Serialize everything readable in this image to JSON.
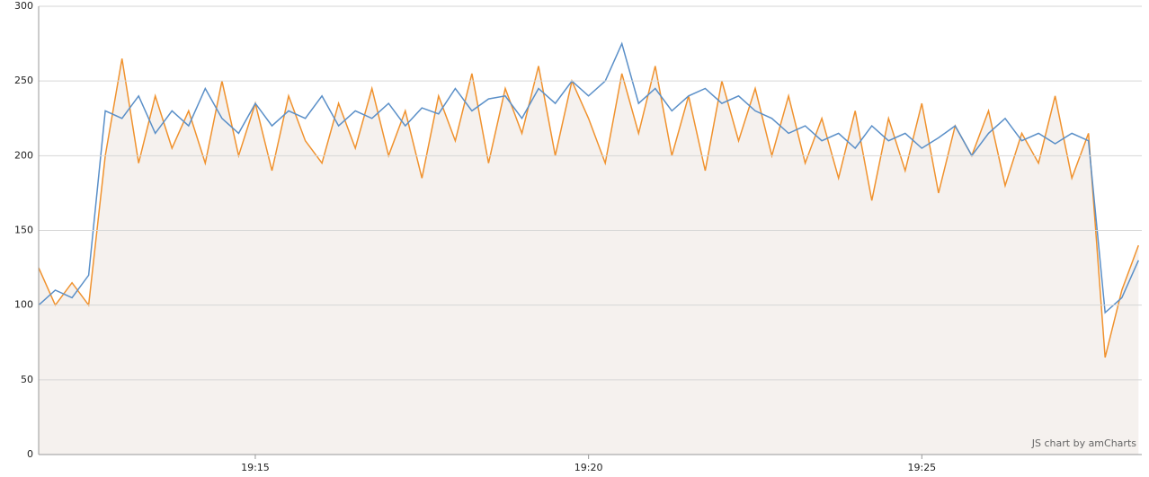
{
  "chart_data": {
    "type": "line",
    "credit": "JS chart by amCharts",
    "x": [
      1151.75,
      1152,
      1152.25,
      1152.5,
      1152.75,
      1153,
      1153.25,
      1153.5,
      1153.75,
      1154,
      1154.25,
      1154.5,
      1154.75,
      1155,
      1155.25,
      1155.5,
      1155.75,
      1156,
      1156.25,
      1156.5,
      1156.75,
      1157,
      1157.25,
      1157.5,
      1157.75,
      1158,
      1158.25,
      1158.5,
      1158.75,
      1159,
      1159.25,
      1159.5,
      1159.75,
      1160,
      1160.25,
      1160.5,
      1160.75,
      1161,
      1161.25,
      1161.5,
      1161.75,
      1162,
      1162.25,
      1162.5,
      1162.75,
      1163,
      1163.25,
      1163.5,
      1163.75,
      1164,
      1164.25,
      1164.5,
      1164.75,
      1165,
      1165.25,
      1165.5,
      1165.75,
      1166,
      1166.25,
      1166.5,
      1166.75,
      1167,
      1167.25,
      1167.5,
      1167.75,
      1168,
      1168.25
    ],
    "series": [
      {
        "color": "#f0922e",
        "fill": "#f5f1ee",
        "values": [
          125,
          100,
          115,
          100,
          200,
          265,
          195,
          240,
          205,
          230,
          195,
          250,
          200,
          235,
          190,
          240,
          210,
          195,
          235,
          205,
          245,
          200,
          230,
          185,
          240,
          210,
          255,
          195,
          245,
          215,
          260,
          200,
          250,
          225,
          195,
          255,
          215,
          260,
          200,
          240,
          190,
          250,
          210,
          245,
          200,
          240,
          195,
          225,
          185,
          230,
          170,
          225,
          190,
          235,
          175,
          220,
          200,
          230,
          180,
          215,
          195,
          240,
          185,
          215,
          65,
          110,
          140
        ]
      },
      {
        "color": "#5a8fc8",
        "values": [
          100,
          110,
          105,
          120,
          230,
          225,
          240,
          215,
          230,
          220,
          245,
          225,
          215,
          235,
          220,
          230,
          225,
          240,
          220,
          230,
          225,
          235,
          220,
          232,
          228,
          245,
          230,
          238,
          240,
          225,
          245,
          235,
          250,
          240,
          250,
          275,
          235,
          245,
          230,
          240,
          245,
          235,
          240,
          230,
          225,
          215,
          220,
          210,
          215,
          205,
          220,
          210,
          215,
          205,
          212,
          220,
          200,
          215,
          225,
          210,
          215,
          208,
          215,
          210,
          95,
          105,
          130
        ]
      }
    ],
    "xlim": [
      1151.75,
      1168.3
    ],
    "xticks": [
      {
        "value": 1155,
        "label": "19:15"
      },
      {
        "value": 1160,
        "label": "19:20"
      },
      {
        "value": 1165,
        "label": "19:25"
      }
    ],
    "ylim": [
      0,
      300
    ],
    "yticks": [
      0,
      50,
      100,
      150,
      200,
      250,
      300
    ],
    "grid": true
  }
}
